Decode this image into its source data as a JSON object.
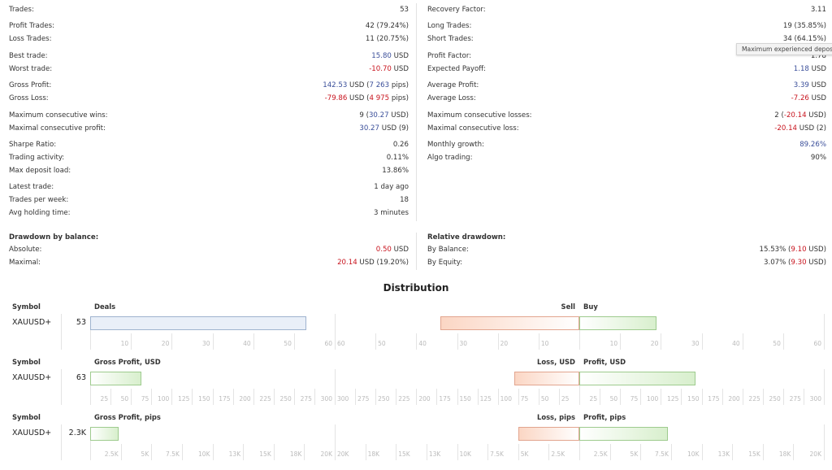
{
  "stats_left": [
    {
      "label": "Trades:",
      "value": [
        {
          "t": "53"
        }
      ]
    },
    {
      "label": "Profit Trades:",
      "value": [
        {
          "t": "42 (79.24%)"
        }
      ]
    },
    {
      "label": "Loss Trades:",
      "value": [
        {
          "t": "11 (20.75%)"
        }
      ]
    },
    {
      "label": "Best trade:",
      "value": [
        {
          "t": "15.80",
          "c": "blue"
        },
        {
          "t": " USD"
        }
      ]
    },
    {
      "label": "Worst trade:",
      "value": [
        {
          "t": "-10.70",
          "c": "red"
        },
        {
          "t": " USD"
        }
      ]
    },
    {
      "label": "Gross Profit:",
      "value": [
        {
          "t": "142.53",
          "c": "blue"
        },
        {
          "t": " USD ("
        },
        {
          "t": "7 263",
          "c": "blue"
        },
        {
          "t": " pips)"
        }
      ]
    },
    {
      "label": "Gross Loss:",
      "value": [
        {
          "t": "-79.86",
          "c": "red"
        },
        {
          "t": " USD ("
        },
        {
          "t": "4 975",
          "c": "red"
        },
        {
          "t": " pips)"
        }
      ]
    },
    {
      "label": "Maximum consecutive wins:",
      "value": [
        {
          "t": "9 ("
        },
        {
          "t": "30.27",
          "c": "blue"
        },
        {
          "t": " USD)"
        }
      ]
    },
    {
      "label": "Maximal consecutive profit:",
      "value": [
        {
          "t": "30.27",
          "c": "blue"
        },
        {
          "t": " USD (9)"
        }
      ]
    },
    {
      "label": "Sharpe Ratio:",
      "value": [
        {
          "t": "0.26"
        }
      ]
    },
    {
      "label": "Trading activity:",
      "value": [
        {
          "t": "0.11%"
        }
      ]
    },
    {
      "label": "Max deposit load:",
      "value": [
        {
          "t": "13.86%"
        }
      ]
    },
    {
      "label": "Latest trade:",
      "value": [
        {
          "t": "1 day ago"
        }
      ]
    },
    {
      "label": "Trades per week:",
      "value": [
        {
          "t": "18"
        }
      ]
    },
    {
      "label": "Avg holding time:",
      "value": [
        {
          "t": "3 minutes"
        }
      ]
    },
    {
      "label": "Drawdown by balance:",
      "header": true,
      "value": []
    },
    {
      "label": "Absolute:",
      "value": [
        {
          "t": "0.50",
          "c": "red"
        },
        {
          "t": " USD"
        }
      ]
    },
    {
      "label": "Maximal:",
      "value": [
        {
          "t": "20.14",
          "c": "red"
        },
        {
          "t": " USD (19.20%)"
        }
      ]
    }
  ],
  "stats_right": [
    {
      "label": "Recovery Factor:",
      "value": [
        {
          "t": "3.11"
        }
      ]
    },
    {
      "label": "Long Trades:",
      "value": [
        {
          "t": "19 (35.85%)"
        }
      ]
    },
    {
      "label": "Short Trades:",
      "value": [
        {
          "t": "34 (64.15%)"
        }
      ]
    },
    {
      "label": "Profit Factor:",
      "value": [
        {
          "t": "1.78"
        }
      ]
    },
    {
      "label": "Expected Payoff:",
      "value": [
        {
          "t": "1.18",
          "c": "blue"
        },
        {
          "t": " USD"
        }
      ]
    },
    {
      "label": "Average Profit:",
      "value": [
        {
          "t": "3.39",
          "c": "blue"
        },
        {
          "t": " USD"
        }
      ]
    },
    {
      "label": "Average Loss:",
      "value": [
        {
          "t": "-7.26",
          "c": "red"
        },
        {
          "t": " USD"
        }
      ]
    },
    {
      "label": "Maximum consecutive losses:",
      "value": [
        {
          "t": "2 ("
        },
        {
          "t": "-20.14",
          "c": "red"
        },
        {
          "t": " USD)"
        }
      ]
    },
    {
      "label": "Maximal consecutive loss:",
      "value": [
        {
          "t": "-20.14",
          "c": "red"
        },
        {
          "t": " USD (2)"
        }
      ]
    },
    {
      "label": "Monthly growth:",
      "value": [
        {
          "t": "89.26%",
          "c": "blue"
        }
      ]
    },
    {
      "label": "Algo trading:",
      "value": [
        {
          "t": "90%"
        }
      ]
    },
    {
      "label": "Relative drawdown:",
      "header": true,
      "value": []
    },
    {
      "label": "By Balance:",
      "value": [
        {
          "t": "15.53% ("
        },
        {
          "t": "9.10",
          "c": "red"
        },
        {
          "t": " USD)"
        }
      ]
    },
    {
      "label": "By Equity:",
      "value": [
        {
          "t": "3.07% ("
        },
        {
          "t": "9.30",
          "c": "red"
        },
        {
          "t": " USD)"
        }
      ]
    }
  ],
  "tooltip": "Maximum experienced deposit lo",
  "colors": {
    "blue": "#3b4f9a",
    "red": "#c8141e",
    "profit_bar": "#d8efcd",
    "loss_bar": "#fbd6c4",
    "deals_bar": "#e9eff8"
  },
  "distribution": {
    "title": "Distribution"
  },
  "chart_data": [
    {
      "type": "bar",
      "symbol_header": "Symbol",
      "symbol": "XAUUSD+",
      "left": {
        "label": "Deals",
        "value": 53,
        "display": "53",
        "style": "neutral"
      },
      "right": {
        "neg_label": "Sell",
        "neg_value": 34,
        "pos_label": "Buy",
        "pos_value": 19
      },
      "axis_max": 60,
      "ticks": [
        10,
        20,
        30,
        40,
        50,
        60
      ],
      "tick_labels": [
        "10",
        "20",
        "30",
        "40",
        "50",
        "60"
      ]
    },
    {
      "type": "bar",
      "symbol_header": "Symbol",
      "symbol": "XAUUSD+",
      "left": {
        "label": "Gross Profit, USD",
        "value": 63,
        "display": "63",
        "style": "pos"
      },
      "right": {
        "neg_label": "Loss, USD",
        "neg_value": 79.86,
        "pos_label": "Profit, USD",
        "pos_value": 142.53
      },
      "axis_max": 300,
      "ticks": [
        25,
        50,
        75,
        100,
        125,
        150,
        175,
        200,
        225,
        250,
        275,
        300
      ],
      "tick_labels": [
        "25",
        "50",
        "75",
        "100",
        "125",
        "150",
        "175",
        "200",
        "225",
        "250",
        "275",
        "300"
      ]
    },
    {
      "type": "bar",
      "symbol_header": "Symbol",
      "symbol": "XAUUSD+",
      "left": {
        "label": "Gross Profit, pips",
        "value": 2300,
        "display": "2.3K",
        "style": "pos"
      },
      "right": {
        "neg_label": "Loss, pips",
        "neg_value": 4975,
        "pos_label": "Profit, pips",
        "pos_value": 7263
      },
      "axis_max": 20000,
      "ticks": [
        2500,
        5000,
        7500,
        10000,
        12500,
        15000,
        17500,
        20000
      ],
      "tick_labels": [
        "2.5K",
        "5K",
        "7.5K",
        "10K",
        "13K",
        "15K",
        "18K",
        "20K"
      ]
    }
  ]
}
